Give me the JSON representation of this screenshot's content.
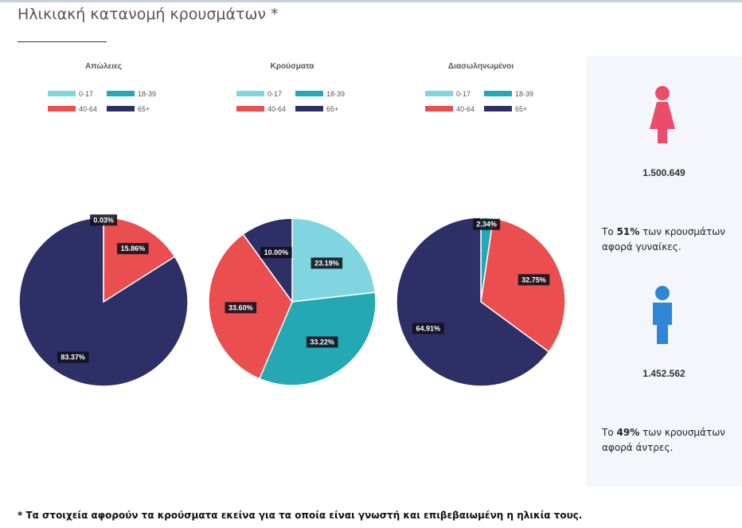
{
  "page": {
    "title": "Ηλικιακή κατανομή κρουσμάτων *",
    "footnote": "* Τα στοιχεία αφορούν τα κρούσματα εκείνα για τα οποία είναι γνωστή και επιβεβαιωμένη η ηλικία τους."
  },
  "colors": {
    "0-17": "#7fd6e0",
    "18-39": "#23a8b4",
    "40-64": "#ea4e4f",
    "65+": "#2e2f66",
    "female": "#ea4c6a",
    "male": "#2f86d6"
  },
  "chart_data": [
    {
      "type": "pie",
      "title": "Απώλειες",
      "categories": [
        "0-17",
        "18-39",
        "40-64",
        "65+"
      ],
      "values": [
        0.0,
        0.03,
        15.86,
        83.37
      ],
      "labels": [
        "",
        "0.03%",
        "15.86%",
        "83.37%"
      ],
      "legend": [
        "0-17",
        "18-39",
        "40-64",
        "65+"
      ]
    },
    {
      "type": "pie",
      "title": "Κρούσματα",
      "categories": [
        "0-17",
        "18-39",
        "40-64",
        "65+"
      ],
      "values": [
        23.19,
        33.22,
        33.6,
        10.0
      ],
      "labels": [
        "23.19%",
        "33.22%",
        "33.60%",
        "10.00%"
      ],
      "legend": [
        "0-17",
        "18-39",
        "40-64",
        "65+"
      ]
    },
    {
      "type": "pie",
      "title": "Διασωληνωμένοι",
      "categories": [
        "0-17",
        "18-39",
        "40-64",
        "65+"
      ],
      "values": [
        0.0,
        2.34,
        32.75,
        64.91
      ],
      "labels": [
        "",
        "2.34%",
        "32.75%",
        "64.91%"
      ],
      "legend": [
        "0-17",
        "18-39",
        "40-64",
        "65+"
      ]
    }
  ],
  "gender": {
    "female": {
      "icon": "female-icon",
      "count": "1.500.649",
      "desc_prefix": "Το ",
      "percent": "51%",
      "desc_suffix": " των κρουσμάτων αφορά γυναίκες."
    },
    "male": {
      "icon": "male-icon",
      "count": "1.452.562",
      "desc_prefix": "Το ",
      "percent": "49%",
      "desc_suffix": " των κρουσμάτων αφορά άντρες."
    }
  }
}
